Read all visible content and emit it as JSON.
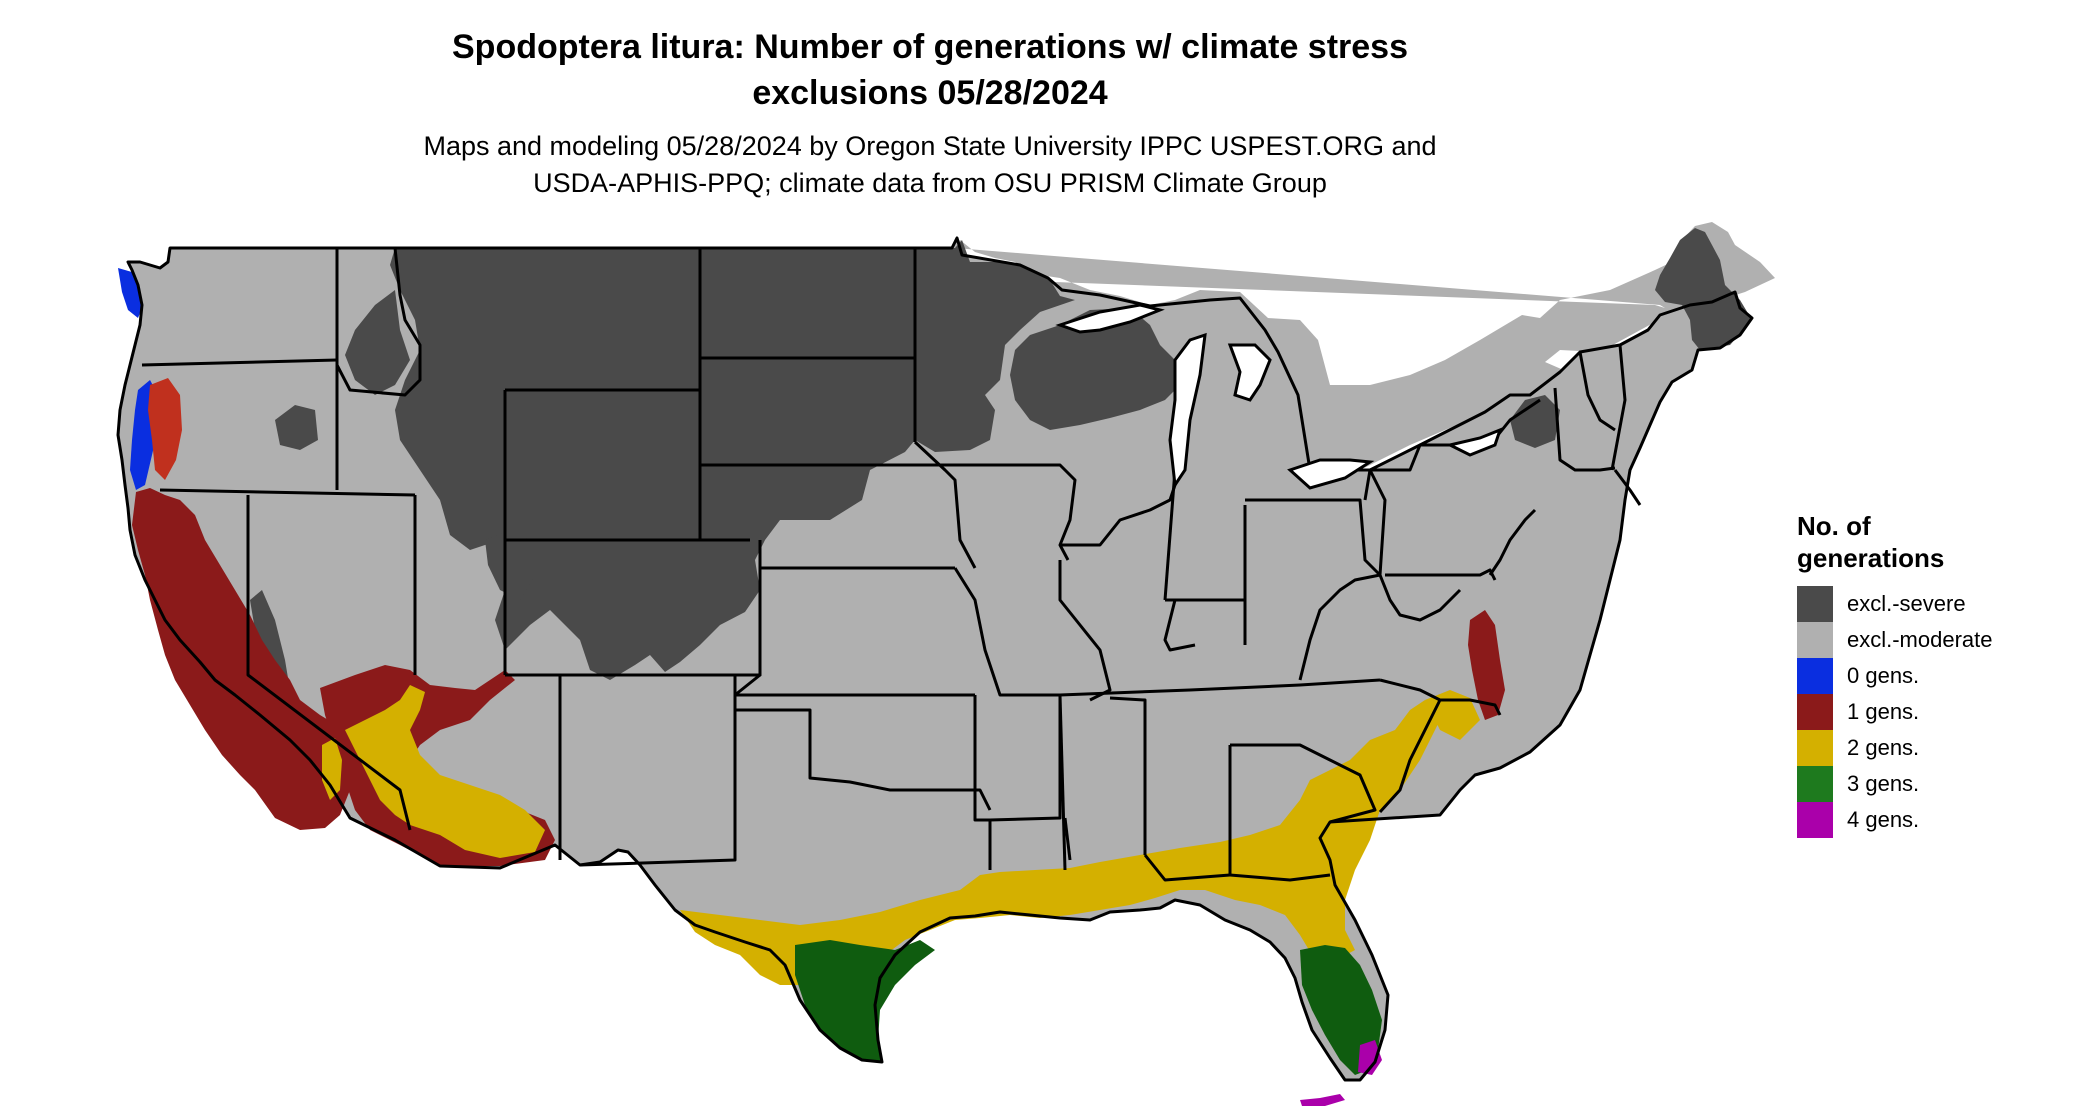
{
  "title_line1": "Spodoptera litura: Number of generations w/ climate stress",
  "title_line2": "exclusions 05/28/2024",
  "subtitle_line1": "Maps and modeling 05/28/2024 by Oregon State University IPPC USPEST.ORG and",
  "subtitle_line2": "USDA-APHIS-PPQ; climate data from OSU PRISM Climate Group",
  "legend": {
    "title_line1": "No. of",
    "title_line2": "generations",
    "items": [
      {
        "label": "excl.-severe",
        "color": "#4a4a4a"
      },
      {
        "label": "excl.-moderate",
        "color": "#b0b0b0"
      },
      {
        "label": "0 gens.",
        "color": "#0a2ee0"
      },
      {
        "label": "1 gens.",
        "color": "#8b1a1a"
      },
      {
        "label": "2 gens.",
        "color": "#d4b000"
      },
      {
        "label": "3 gens.",
        "color": "#1e7a1e"
      },
      {
        "label": "4 gens.",
        "color": "#aa00aa"
      }
    ]
  },
  "colors": {
    "severe": "#4a4a4a",
    "moderate": "#b0b0b0",
    "zero": "#0a2ee0",
    "one": "#8b1a1a",
    "two": "#d4b000",
    "three": "#1e7a1e",
    "three_dark": "#0f5c0f",
    "four": "#aa00aa"
  }
}
